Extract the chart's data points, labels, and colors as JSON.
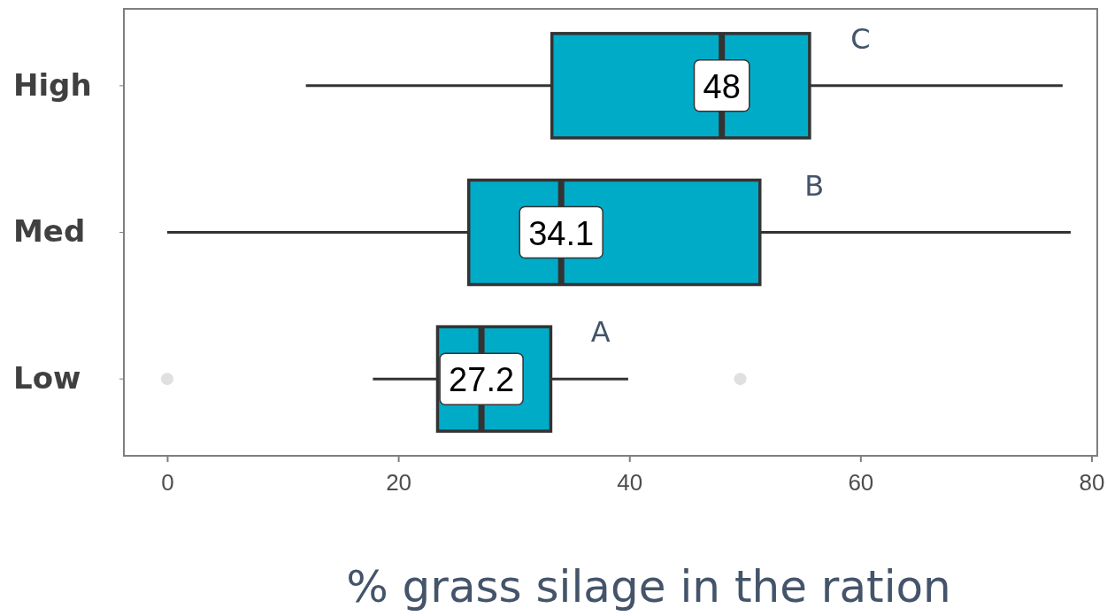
{
  "chart_data": {
    "type": "box",
    "orientation": "horizontal",
    "categories": [
      "High",
      "Med",
      "Low"
    ],
    "xlabel": "% grass silage in the ration",
    "xlim": [
      -3.75,
      80.5
    ],
    "xticks": [
      0,
      20,
      40,
      60,
      80
    ],
    "grid": false,
    "series": [
      {
        "color": "#00abc8",
        "boxes": [
          {
            "low": 12,
            "q1": 33.3,
            "median": 48,
            "q3": 55.6,
            "high": 77.5
          },
          {
            "low": 0,
            "q1": 26.1,
            "median": 34.1,
            "q3": 51.3,
            "high": 78.2
          },
          {
            "low": 17.8,
            "q1": 23.4,
            "median": 27.2,
            "q3": 33.2,
            "high": 39.9,
            "outliers": [
              0,
              49.6
            ]
          }
        ]
      }
    ],
    "annotations": [
      {
        "text": "48",
        "x": 48,
        "y": "High"
      },
      {
        "text": "34.1",
        "x": 34.1,
        "y": "Med"
      },
      {
        "text": "27.2",
        "x": 27.2,
        "y": "Low"
      },
      {
        "text": "C",
        "x": 60,
        "y": "High"
      },
      {
        "text": "B",
        "x": 56,
        "y": "Med"
      },
      {
        "text": "A",
        "x": 37.5,
        "y": "Low"
      }
    ]
  }
}
